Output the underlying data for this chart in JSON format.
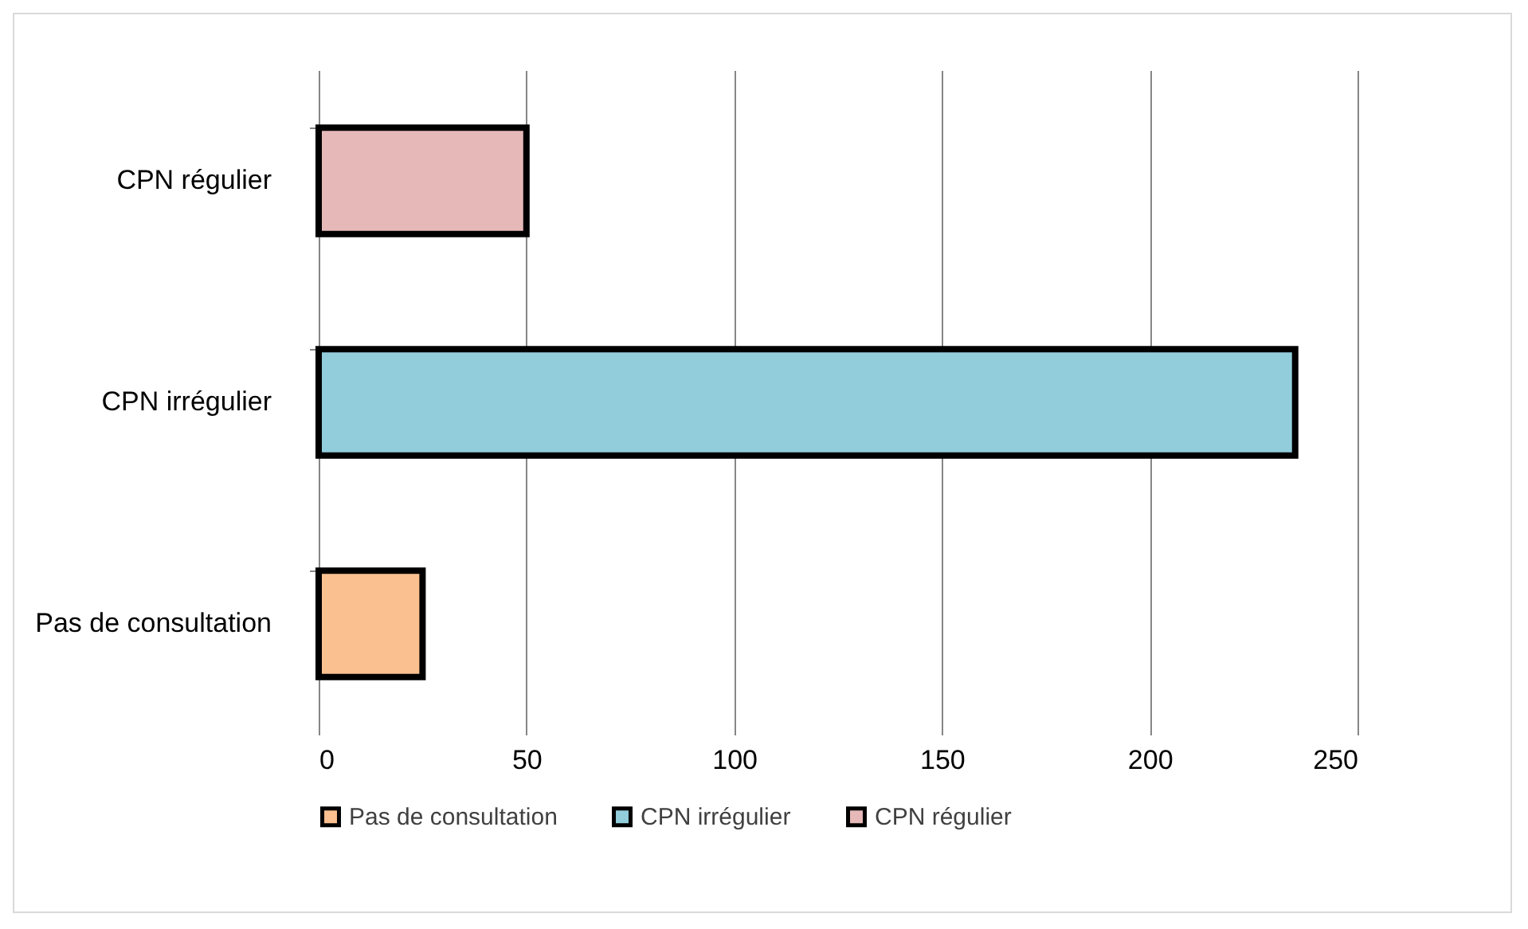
{
  "chart_data": {
    "type": "bar",
    "orientation": "horizontal",
    "categories": [
      "CPN régulier",
      "CPN irrégulier",
      "Pas de consultation"
    ],
    "series": [
      {
        "name": "Pas de consultation",
        "color": "#fac090",
        "values": [
          null,
          null,
          25
        ]
      },
      {
        "name": "CPN irrégulier",
        "color": "#92cddc",
        "values": [
          null,
          235,
          null
        ]
      },
      {
        "name": "CPN régulier",
        "color": "#e6b9b8",
        "values": [
          50,
          null,
          null
        ]
      }
    ],
    "xlim": [
      0,
      250
    ],
    "xticks": [
      0,
      50,
      100,
      150,
      200,
      250
    ],
    "grid": "x",
    "legend": "bottom"
  }
}
